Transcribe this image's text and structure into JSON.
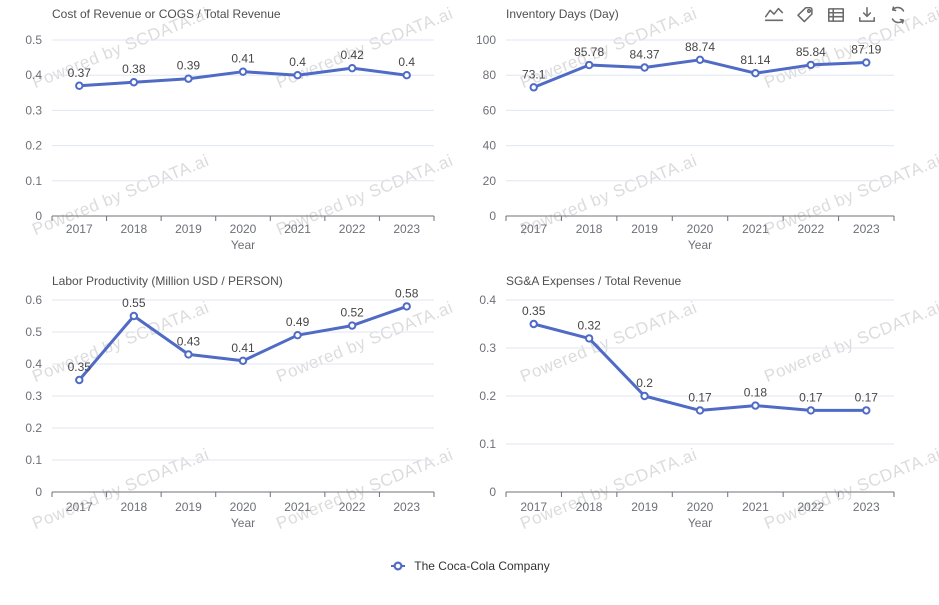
{
  "watermark": {
    "text": "Powered by SCDATA.ai"
  },
  "toolbar": {
    "icons": [
      "line-chart-icon",
      "tag-icon",
      "table-icon",
      "download-icon",
      "refresh-icon"
    ]
  },
  "legend": {
    "label": "The Coca-Cola Company",
    "color": "#4f6bc5"
  },
  "colors": {
    "line": "#4f6bc5",
    "marker_fill": "#ffffff",
    "grid": "#e0e6f1",
    "axis": "#6e7079",
    "tick_label": "#6e7079",
    "data_label": "#464646",
    "title": "#4f4f4f",
    "watermark": "#dcdcdc",
    "toolbar_icon": "#6b6b6b",
    "legend_text": "#333333"
  },
  "chart_data": [
    {
      "type": "line",
      "title": "Cost of Revenue or COGS / Total Revenue",
      "xlabel": "Year",
      "categories": [
        "2017",
        "2018",
        "2019",
        "2020",
        "2021",
        "2022",
        "2023"
      ],
      "values": [
        0.37,
        0.38,
        0.39,
        0.41,
        0.4,
        0.42,
        0.4
      ],
      "labels": [
        "0.37",
        "0.38",
        "0.39",
        "0.41",
        "0.4",
        "0.42",
        "0.4"
      ],
      "ylim": [
        0,
        0.5
      ],
      "yticks": [
        0,
        0.1,
        0.2,
        0.3,
        0.4,
        0.5
      ],
      "series_name": "The Coca-Cola Company",
      "grid": true,
      "legend_position": "bottom"
    },
    {
      "type": "line",
      "title": "Inventory Days (Day)",
      "xlabel": "Year",
      "categories": [
        "2017",
        "2018",
        "2019",
        "2020",
        "2021",
        "2022",
        "2023"
      ],
      "values": [
        73.1,
        85.78,
        84.37,
        88.74,
        81.14,
        85.84,
        87.19
      ],
      "labels": [
        "73.1",
        "85.78",
        "84.37",
        "88.74",
        "81.14",
        "85.84",
        "87.19"
      ],
      "ylim": [
        0,
        100
      ],
      "yticks": [
        0,
        20,
        40,
        60,
        80,
        100
      ],
      "series_name": "The Coca-Cola Company",
      "grid": true,
      "legend_position": "bottom"
    },
    {
      "type": "line",
      "title": "Labor Productivity (Million USD / PERSON)",
      "xlabel": "Year",
      "categories": [
        "2017",
        "2018",
        "2019",
        "2020",
        "2021",
        "2022",
        "2023"
      ],
      "values": [
        0.35,
        0.55,
        0.43,
        0.41,
        0.49,
        0.52,
        0.58
      ],
      "labels": [
        "0.35",
        "0.55",
        "0.43",
        "0.41",
        "0.49",
        "0.52",
        "0.58"
      ],
      "ylim": [
        0,
        0.6
      ],
      "yticks": [
        0,
        0.1,
        0.2,
        0.3,
        0.4,
        0.5,
        0.6
      ],
      "series_name": "The Coca-Cola Company",
      "grid": true,
      "legend_position": "bottom"
    },
    {
      "type": "line",
      "title": "SG&A Expenses / Total Revenue",
      "xlabel": "Year",
      "categories": [
        "2017",
        "2018",
        "2019",
        "2020",
        "2021",
        "2022",
        "2023"
      ],
      "values": [
        0.35,
        0.32,
        0.2,
        0.17,
        0.18,
        0.17,
        0.17
      ],
      "labels": [
        "0.35",
        "0.32",
        "0.2",
        "0.17",
        "0.18",
        "0.17",
        "0.17"
      ],
      "ylim": [
        0,
        0.4
      ],
      "yticks": [
        0,
        0.1,
        0.2,
        0.3,
        0.4
      ],
      "series_name": "The Coca-Cola Company",
      "grid": true,
      "legend_position": "bottom"
    }
  ]
}
